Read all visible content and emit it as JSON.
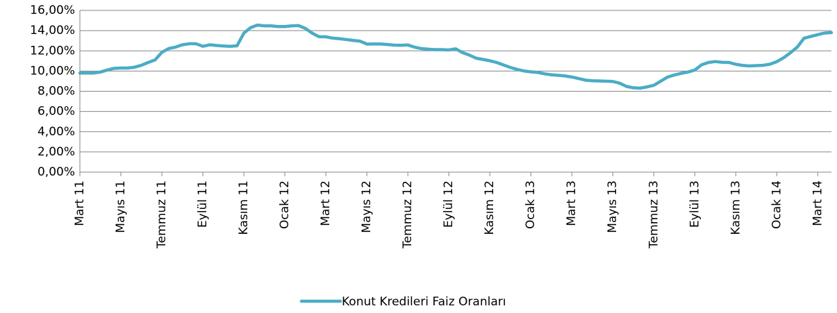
{
  "chart_data": {
    "type": "line",
    "categories": [
      "Mart 11",
      null,
      null,
      null,
      null,
      null,
      "Mayıs 11",
      null,
      null,
      null,
      null,
      null,
      "Temmuz 11",
      null,
      null,
      null,
      null,
      null,
      "Eylül 11",
      null,
      null,
      null,
      null,
      null,
      "Kasım 11",
      null,
      null,
      null,
      null,
      null,
      "Ocak 12",
      null,
      null,
      null,
      null,
      null,
      "Mart 12",
      null,
      null,
      null,
      null,
      null,
      "Mayıs 12",
      null,
      null,
      null,
      null,
      null,
      "Temmuz 12",
      null,
      null,
      null,
      null,
      null,
      "Eylül 12",
      null,
      null,
      null,
      null,
      null,
      "Kasım 12",
      null,
      null,
      null,
      null,
      null,
      "Ocak 13",
      null,
      null,
      null,
      null,
      null,
      "Mart 13",
      null,
      null,
      null,
      null,
      null,
      "Mayıs 13",
      null,
      null,
      null,
      null,
      null,
      "Temmuz 13",
      null,
      null,
      null,
      null,
      null,
      "Eylül 13",
      null,
      null,
      null,
      null,
      null,
      "Kasım 13",
      null,
      null,
      null,
      null,
      null,
      "Ocak 14",
      null,
      null,
      null,
      null,
      null,
      "Mart 14",
      null,
      null
    ],
    "series": [
      {
        "name": "Konut Kredileri Faiz Oranları",
        "color": "#4bacc6",
        "values": [
          9.8,
          9.8,
          9.8,
          9.9,
          10.1,
          10.27,
          10.3,
          10.3,
          10.38,
          10.57,
          10.85,
          11.1,
          11.85,
          12.23,
          12.37,
          12.6,
          12.7,
          12.7,
          12.45,
          12.6,
          12.53,
          12.48,
          12.45,
          12.5,
          13.75,
          14.3,
          14.55,
          14.47,
          14.47,
          14.4,
          14.4,
          14.47,
          14.5,
          14.22,
          13.75,
          13.4,
          13.39,
          13.26,
          13.2,
          13.12,
          13.03,
          12.96,
          12.67,
          12.68,
          12.68,
          12.63,
          12.57,
          12.55,
          12.58,
          12.36,
          12.22,
          12.16,
          12.12,
          12.12,
          12.09,
          12.2,
          11.83,
          11.58,
          11.27,
          11.15,
          11.02,
          10.85,
          10.6,
          10.36,
          10.16,
          10.01,
          9.92,
          9.86,
          9.73,
          9.63,
          9.58,
          9.52,
          9.41,
          9.26,
          9.1,
          9.04,
          9.02,
          9.0,
          8.97,
          8.8,
          8.48,
          8.34,
          8.31,
          8.43,
          8.59,
          8.99,
          9.4,
          9.61,
          9.77,
          9.9,
          10.1,
          10.62,
          10.85,
          10.94,
          10.87,
          10.85,
          10.67,
          10.56,
          10.51,
          10.54,
          10.57,
          10.68,
          10.93,
          11.32,
          11.81,
          12.37,
          13.25,
          13.43,
          13.6,
          13.76,
          13.8
        ]
      }
    ],
    "ylim": [
      0,
      16
    ],
    "yticks": [
      {
        "value": 0,
        "label": "0,00%"
      },
      {
        "value": 2,
        "label": "2,00%"
      },
      {
        "value": 4,
        "label": "4,00%"
      },
      {
        "value": 6,
        "label": "6,00%"
      },
      {
        "value": 8,
        "label": "8,00%"
      },
      {
        "value": 10,
        "label": "10,00%"
      },
      {
        "value": 12,
        "label": "12,00%"
      },
      {
        "value": 14,
        "label": "14,00%"
      },
      {
        "value": 16,
        "label": "16,00%"
      }
    ],
    "grid": true,
    "legend": "bottom"
  }
}
